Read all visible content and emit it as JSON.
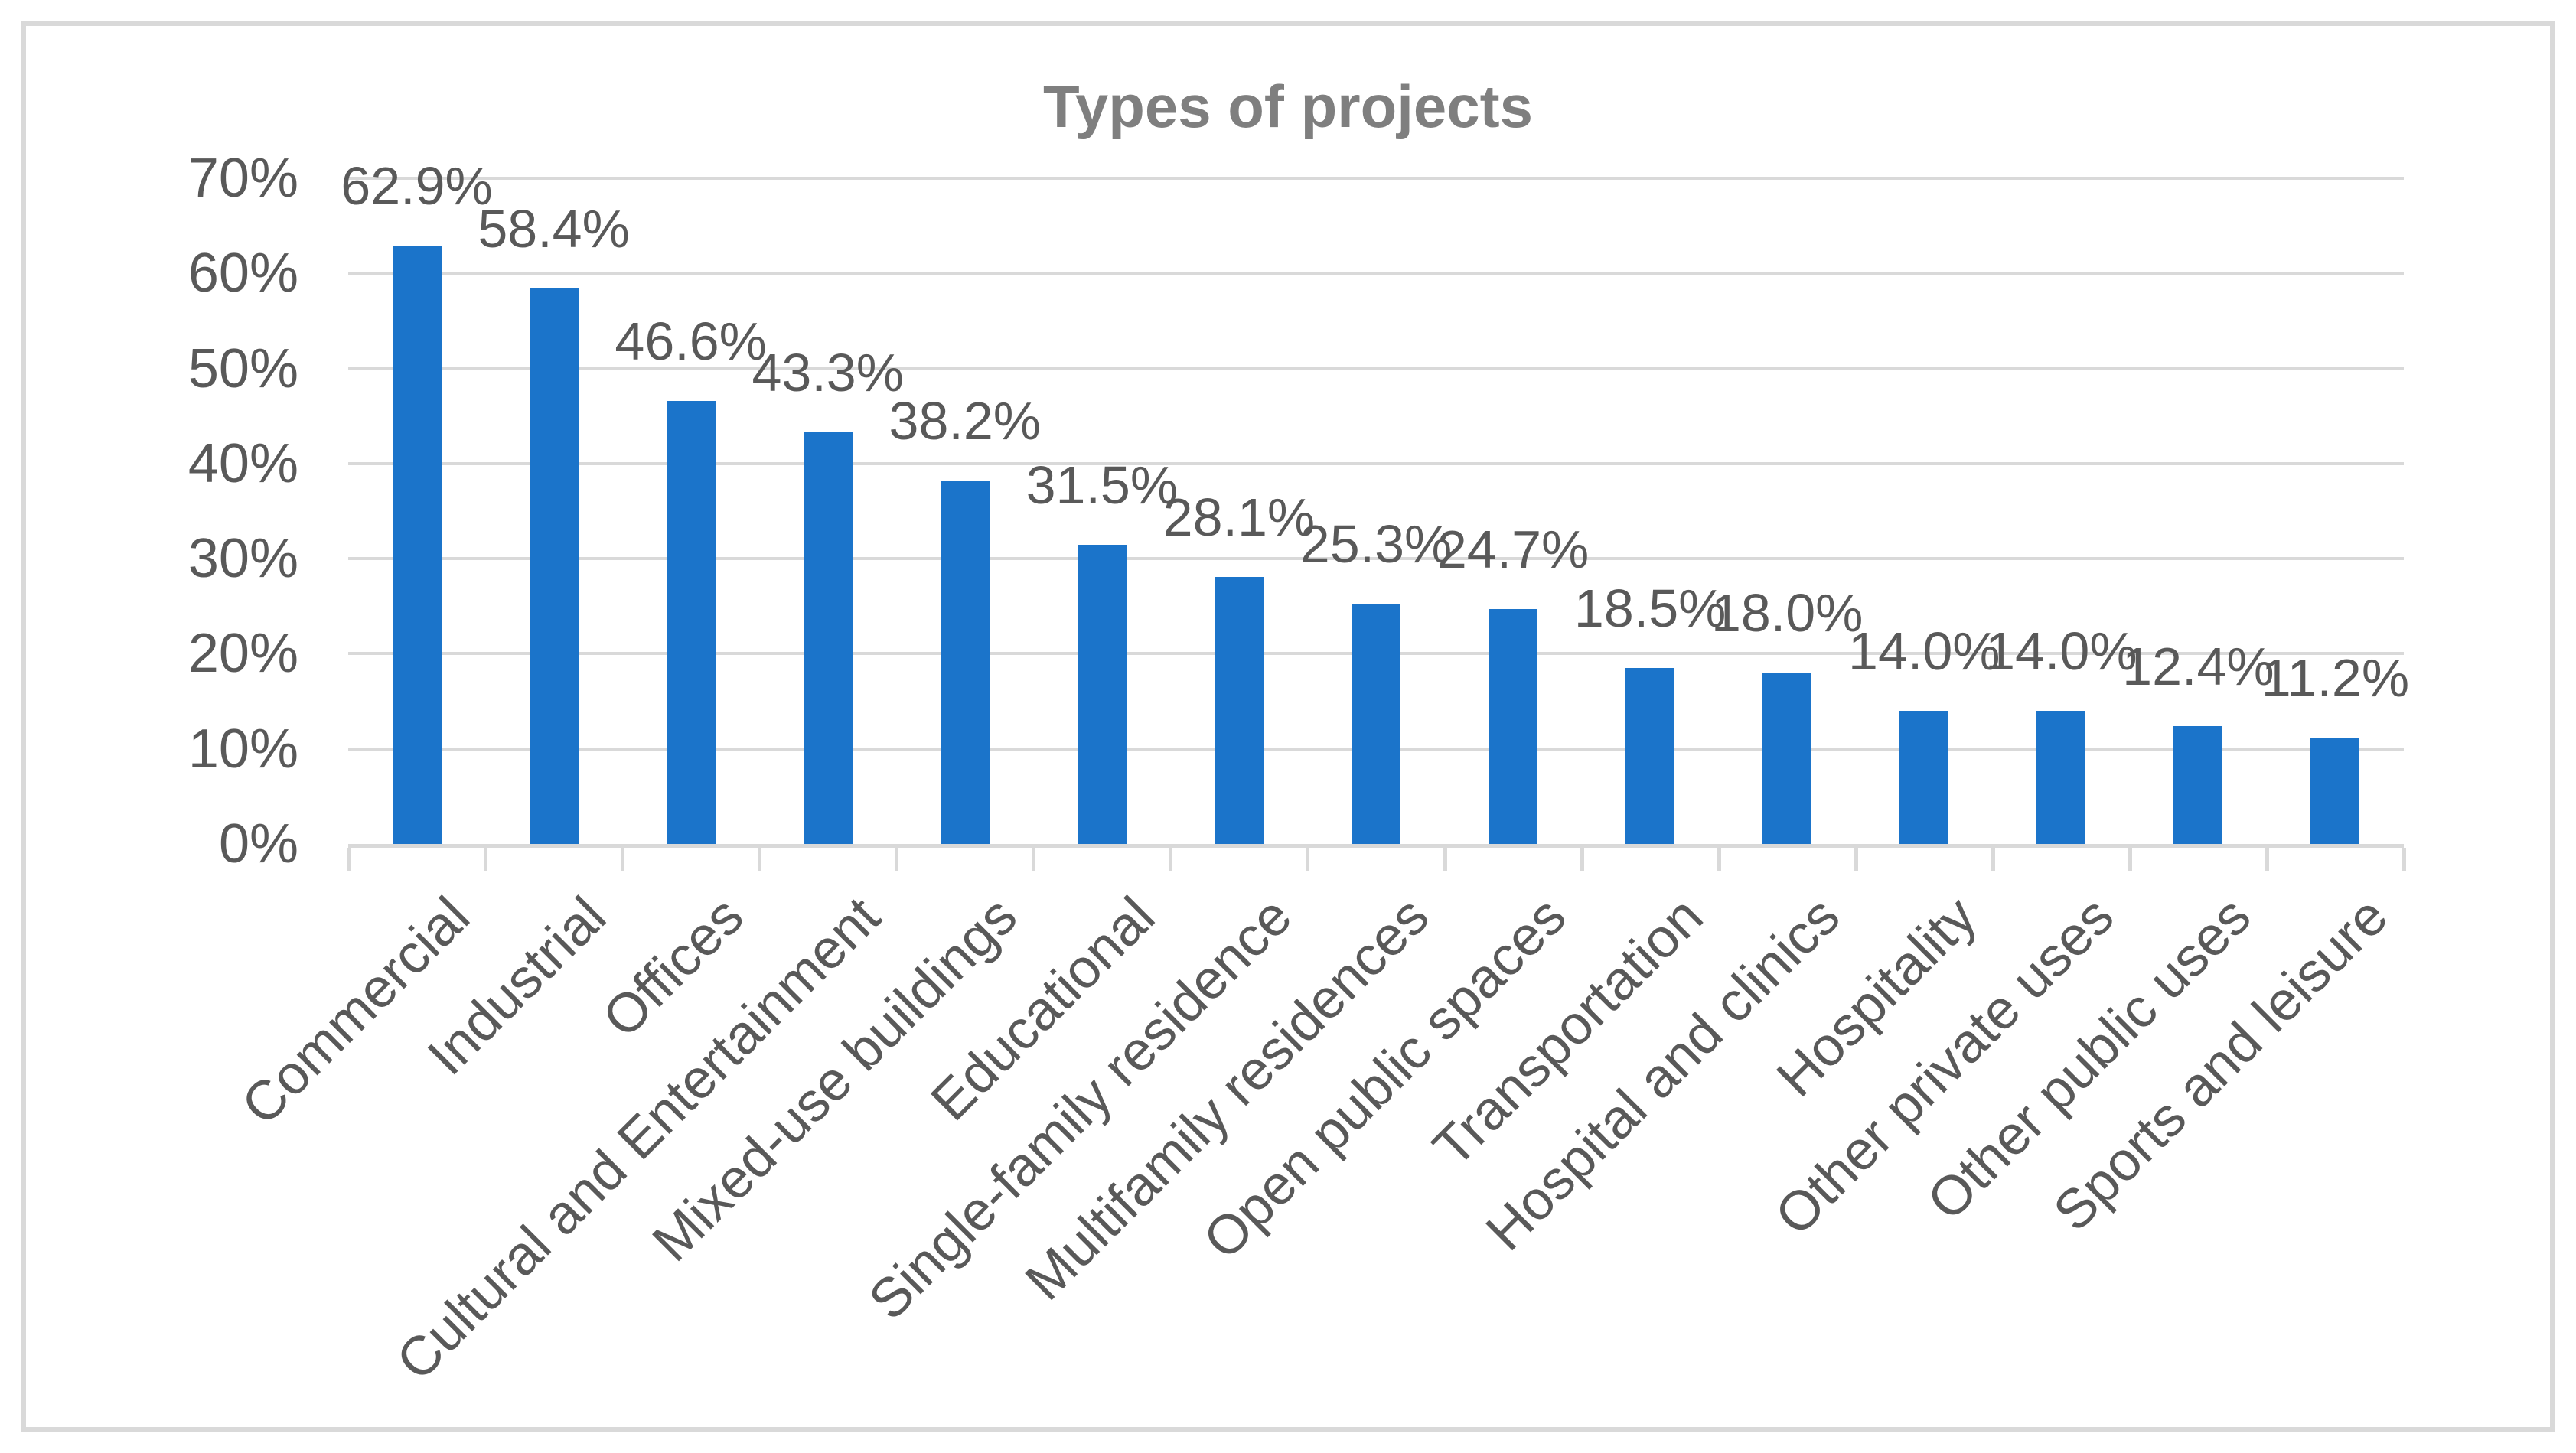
{
  "chart_data": {
    "type": "bar",
    "title": "Types of projects",
    "categories": [
      "Commercial",
      "Industrial",
      "Offices",
      "Cultural and Entertainment",
      "Mixed-use buildings",
      "Educational",
      "Single-family residence",
      "Multifamily residences",
      "Open public spaces",
      "Transportation",
      "Hospital and clinics",
      "Hospitality",
      "Other private uses",
      "Other public uses",
      "Sports and leisure"
    ],
    "values": [
      62.9,
      58.4,
      46.6,
      43.3,
      38.2,
      31.5,
      28.1,
      25.3,
      24.7,
      18.5,
      18.0,
      14.0,
      14.0,
      12.4,
      11.2
    ],
    "value_labels": [
      "62.9%",
      "58.4%",
      "46.6%",
      "43.3%",
      "38.2%",
      "31.5%",
      "28.1%",
      "25.3%",
      "24.7%",
      "18.5%",
      "18.0%",
      "14.0%",
      "14.0%",
      "12.4%",
      "11.2%"
    ],
    "xlabel": "",
    "ylabel": "",
    "ylim": [
      0,
      70
    ],
    "ytick_step": 10,
    "ytick_labels_top_down": [
      "70%",
      "60%",
      "50%",
      "40%",
      "30%",
      "20%",
      "10%",
      "0%"
    ],
    "grid": true,
    "legend": "none",
    "colors": {
      "bar": "#1B74CA",
      "gridline": "#D9D9D9",
      "axis_line": "#D9D9D9",
      "tick_label": "#595959",
      "data_label": "#595959",
      "title": "#7F7F7F",
      "figure_border": "#D9D9D9"
    }
  }
}
